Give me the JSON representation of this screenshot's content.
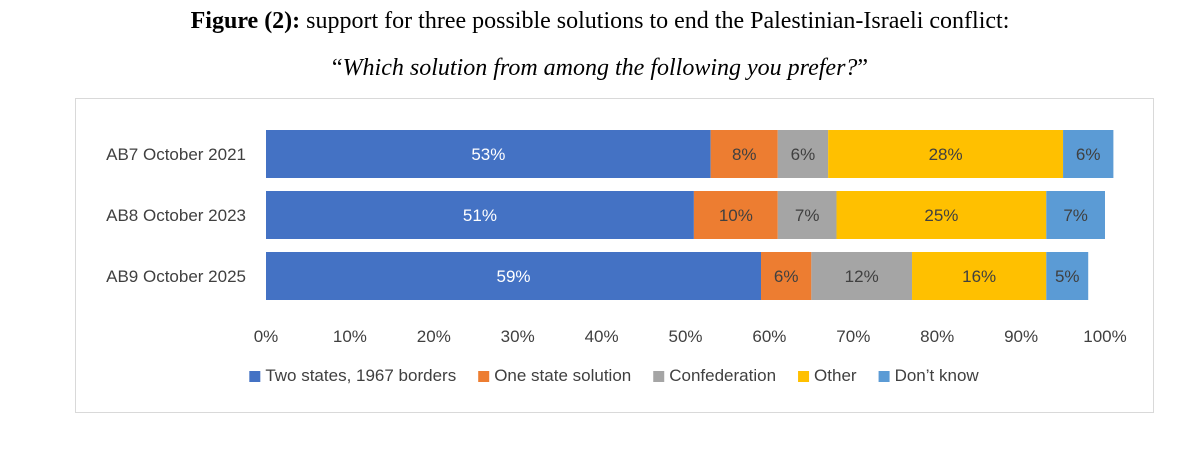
{
  "figure": {
    "title_bold": "Figure (2):",
    "title_rest": " support for three possible solutions to end the Palestinian-Israeli conflict:",
    "subtitle_open": "“",
    "subtitle_italic": "Which solution from among the following you prefer?",
    "subtitle_close": "”"
  },
  "chart_data": {
    "type": "bar",
    "orientation": "horizontal",
    "stacked": true,
    "categories": [
      "AB7 October 2021",
      "AB8 October 2023",
      "AB9 October 2025"
    ],
    "series": [
      {
        "name": "Two states, 1967 borders",
        "color": "#4472c4",
        "label_color": "#ffffff",
        "values": [
          53,
          51,
          59
        ]
      },
      {
        "name": "One state solution",
        "color": "#ed7d31",
        "label_color": "#404040",
        "values": [
          8,
          10,
          6
        ]
      },
      {
        "name": "Confederation",
        "color": "#a5a5a5",
        "label_color": "#404040",
        "values": [
          6,
          7,
          12
        ]
      },
      {
        "name": "Other",
        "color": "#ffc000",
        "label_color": "#404040",
        "values": [
          28,
          25,
          16
        ]
      },
      {
        "name": "Don’t know",
        "color": "#5b9bd5",
        "label_color": "#404040",
        "values": [
          6,
          7,
          5
        ]
      }
    ],
    "data_labels": [
      [
        "53%",
        "51%",
        "59%"
      ],
      [
        "8%",
        "10%",
        "6%"
      ],
      [
        "6%",
        "7%",
        "12%"
      ],
      [
        "28%",
        "25%",
        "16%"
      ],
      [
        "6%",
        "7%",
        "5%"
      ]
    ],
    "xlim": [
      0,
      100
    ],
    "xticks": [
      "0%",
      "10%",
      "20%",
      "30%",
      "40%",
      "50%",
      "60%",
      "70%",
      "80%",
      "90%",
      "100%"
    ],
    "grid": false,
    "legend_position": "bottom"
  }
}
